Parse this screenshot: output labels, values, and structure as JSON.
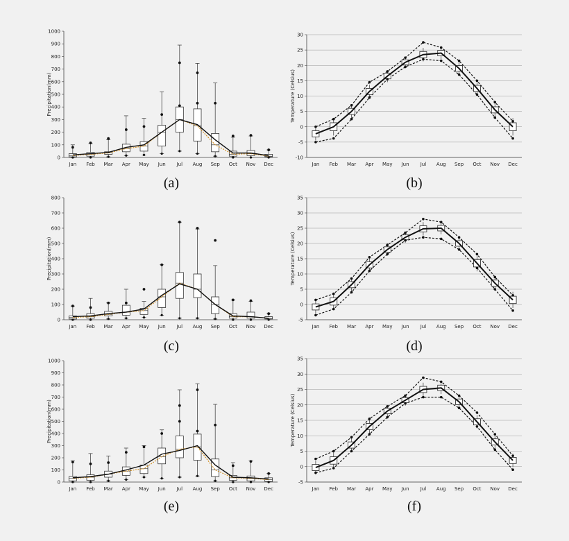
{
  "figure": {
    "background": "#f1f1f1",
    "median_line_color": "#d4932a"
  },
  "chart_data": [
    {
      "id": "a",
      "type": "box",
      "caption": "(a)",
      "ylabel": "Precipitation(mm)",
      "categories": [
        "Jan",
        "Feb",
        "Mar",
        "Apr",
        "May",
        "Jun",
        "Jul",
        "Aug",
        "Sep",
        "Oct",
        "Nov",
        "Dec"
      ],
      "ylim": [
        0,
        1000
      ],
      "yticks": [
        0,
        100,
        200,
        300,
        400,
        500,
        600,
        700,
        800,
        900,
        1000
      ],
      "boxes": [
        {
          "min": 0,
          "q1": 5,
          "median": 15,
          "q3": 30,
          "max": 100
        },
        {
          "min": 0,
          "q1": 10,
          "median": 25,
          "q3": 40,
          "max": 110
        },
        {
          "min": 5,
          "q1": 25,
          "median": 35,
          "q3": 45,
          "max": 140
        },
        {
          "min": 15,
          "q1": 45,
          "median": 70,
          "q3": 105,
          "max": 330
        },
        {
          "min": 20,
          "q1": 50,
          "median": 90,
          "q3": 125,
          "max": 310
        },
        {
          "min": 30,
          "q1": 90,
          "median": 200,
          "q3": 255,
          "max": 520
        },
        {
          "min": 50,
          "q1": 200,
          "median": 300,
          "q3": 400,
          "max": 890
        },
        {
          "min": 30,
          "q1": 130,
          "median": 250,
          "q3": 385,
          "max": 745
        },
        {
          "min": 10,
          "q1": 45,
          "median": 100,
          "q3": 190,
          "max": 590
        },
        {
          "min": 0,
          "q1": 10,
          "median": 25,
          "q3": 50,
          "max": 160
        },
        {
          "min": 0,
          "q1": 15,
          "median": 30,
          "q3": 55,
          "max": 170
        },
        {
          "min": 0,
          "q1": 5,
          "median": 10,
          "q3": 25,
          "max": 60
        }
      ],
      "mean": [
        20,
        30,
        40,
        80,
        100,
        200,
        300,
        260,
        140,
        35,
        35,
        15
      ],
      "points": [
        [
          0,
          80
        ],
        [
          1,
          115
        ],
        [
          2,
          150
        ],
        [
          3,
          220
        ],
        [
          4,
          245
        ],
        [
          5,
          340
        ],
        [
          6,
          750
        ],
        [
          6,
          410
        ],
        [
          7,
          670
        ],
        [
          7,
          430
        ],
        [
          8,
          430
        ],
        [
          9,
          170
        ],
        [
          10,
          175
        ],
        [
          11,
          60
        ]
      ]
    },
    {
      "id": "b",
      "type": "line",
      "caption": "(b)",
      "ylabel": "Temperature (Celsius)",
      "categories": [
        "Jan",
        "Feb",
        "Mar",
        "Apr",
        "May",
        "Jun",
        "Jul",
        "Aug",
        "Sep",
        "Oct",
        "Nov",
        "Dec"
      ],
      "ylim": [
        -10,
        30
      ],
      "yticks": [
        -10,
        -5,
        0,
        5,
        10,
        15,
        20,
        25,
        30
      ],
      "mean": [
        -2.3,
        0,
        5,
        11.5,
        16.5,
        21,
        23.5,
        24,
        19,
        12.5,
        5.5,
        0
      ],
      "upper": [
        0,
        2.5,
        7,
        14.5,
        18,
        22.5,
        27.5,
        25.8,
        21.5,
        15,
        8,
        1.8
      ],
      "lower": [
        -5,
        -3.8,
        2.5,
        9.5,
        15.5,
        19.5,
        22,
        21.5,
        17,
        10.5,
        3,
        -3.8
      ],
      "box_half": [
        1,
        1.3,
        1,
        1,
        0.9,
        0.8,
        1,
        0.9,
        0.9,
        1,
        1,
        1.3
      ]
    },
    {
      "id": "c",
      "type": "box",
      "caption": "(c)",
      "ylabel": "Precipitation(mm)",
      "categories": [
        "Jan",
        "Feb",
        "Mar",
        "Apr",
        "May",
        "Jun",
        "Jul",
        "Aug",
        "Sep",
        "Oct",
        "Nov",
        "Dec"
      ],
      "ylim": [
        0,
        800
      ],
      "yticks": [
        0,
        100,
        200,
        300,
        400,
        500,
        600,
        700,
        800
      ],
      "boxes": [
        {
          "min": 0,
          "q1": 5,
          "median": 15,
          "q3": 25,
          "max": 90
        },
        {
          "min": 0,
          "q1": 10,
          "median": 20,
          "q3": 40,
          "max": 140
        },
        {
          "min": 5,
          "q1": 25,
          "median": 35,
          "q3": 55,
          "max": 110
        },
        {
          "min": 10,
          "q1": 30,
          "median": 50,
          "q3": 95,
          "max": 200
        },
        {
          "min": 15,
          "q1": 35,
          "median": 60,
          "q3": 75,
          "max": 120
        },
        {
          "min": 30,
          "q1": 80,
          "median": 150,
          "q3": 200,
          "max": 360
        },
        {
          "min": 10,
          "q1": 140,
          "median": 240,
          "q3": 310,
          "max": 640
        },
        {
          "min": 10,
          "q1": 145,
          "median": 200,
          "q3": 300,
          "max": 595
        },
        {
          "min": 5,
          "q1": 40,
          "median": 100,
          "q3": 150,
          "max": 355
        },
        {
          "min": 0,
          "q1": 10,
          "median": 20,
          "q3": 40,
          "max": 130
        },
        {
          "min": 0,
          "q1": 10,
          "median": 20,
          "q3": 50,
          "max": 120
        },
        {
          "min": 0,
          "q1": 5,
          "median": 10,
          "q3": 20,
          "max": 40
        }
      ],
      "mean": [
        20,
        25,
        40,
        50,
        70,
        160,
        235,
        200,
        100,
        25,
        20,
        10
      ],
      "points": [
        [
          0,
          90
        ],
        [
          1,
          80
        ],
        [
          2,
          110
        ],
        [
          3,
          110
        ],
        [
          4,
          200
        ],
        [
          5,
          360
        ],
        [
          6,
          640
        ],
        [
          7,
          600
        ],
        [
          8,
          520
        ],
        [
          9,
          130
        ],
        [
          10,
          125
        ],
        [
          11,
          40
        ]
      ]
    },
    {
      "id": "d",
      "type": "line",
      "caption": "(d)",
      "ylabel": "Temperature (Celsius)",
      "categories": [
        "Jan",
        "Feb",
        "Mar",
        "Apr",
        "May",
        "Jun",
        "Jul",
        "Aug",
        "Sep",
        "Oct",
        "Nov",
        "Dec"
      ],
      "ylim": [
        -5,
        35
      ],
      "yticks": [
        -5,
        0,
        5,
        10,
        15,
        20,
        25,
        30,
        35
      ],
      "mean": [
        -0.8,
        1,
        6.5,
        13,
        18,
        22,
        24.8,
        25,
        20,
        13.5,
        7,
        1.5
      ],
      "upper": [
        1.5,
        3.5,
        8.5,
        15.5,
        19.5,
        23.5,
        28,
        27,
        22,
        16.5,
        9,
        3
      ],
      "lower": [
        -3.5,
        -1.5,
        4,
        11,
        16.5,
        21,
        22,
        21.5,
        18,
        12,
        5,
        -2
      ],
      "box_half": [
        1,
        1.2,
        1,
        1,
        0.9,
        0.8,
        1,
        0.9,
        0.9,
        1.2,
        1,
        1.2
      ]
    },
    {
      "id": "e",
      "type": "box",
      "caption": "(e)",
      "ylabel": "Precipitation(mm)",
      "categories": [
        "Jan",
        "Feb",
        "Mar",
        "Apr",
        "May",
        "Jun",
        "Jul",
        "Aug",
        "Sep",
        "Oct",
        "Nov",
        "Dec"
      ],
      "ylim": [
        0,
        1000
      ],
      "yticks": [
        0,
        100,
        200,
        300,
        400,
        500,
        600,
        700,
        800,
        900,
        1000
      ],
      "boxes": [
        {
          "min": 0,
          "q1": 10,
          "median": 30,
          "q3": 45,
          "max": 175
        },
        {
          "min": 0,
          "q1": 15,
          "median": 40,
          "q3": 60,
          "max": 235
        },
        {
          "min": 10,
          "q1": 40,
          "median": 65,
          "q3": 90,
          "max": 215
        },
        {
          "min": 20,
          "q1": 55,
          "median": 90,
          "q3": 125,
          "max": 280
        },
        {
          "min": 40,
          "q1": 70,
          "median": 110,
          "q3": 140,
          "max": 300
        },
        {
          "min": 30,
          "q1": 150,
          "median": 210,
          "q3": 280,
          "max": 430
        },
        {
          "min": 40,
          "q1": 200,
          "median": 270,
          "q3": 380,
          "max": 760
        },
        {
          "min": 50,
          "q1": 180,
          "median": 290,
          "q3": 395,
          "max": 810
        },
        {
          "min": 10,
          "q1": 45,
          "median": 100,
          "q3": 190,
          "max": 640
        },
        {
          "min": 0,
          "q1": 15,
          "median": 35,
          "q3": 55,
          "max": 160
        },
        {
          "min": 0,
          "q1": 10,
          "median": 30,
          "q3": 50,
          "max": 175
        },
        {
          "min": 0,
          "q1": 5,
          "median": 20,
          "q3": 35,
          "max": 70
        }
      ],
      "mean": [
        35,
        45,
        65,
        100,
        140,
        230,
        260,
        300,
        140,
        40,
        35,
        25
      ],
      "points": [
        [
          0,
          165
        ],
        [
          1,
          150
        ],
        [
          2,
          160
        ],
        [
          3,
          245
        ],
        [
          4,
          290
        ],
        [
          5,
          400
        ],
        [
          6,
          630
        ],
        [
          6,
          500
        ],
        [
          7,
          760
        ],
        [
          7,
          420
        ],
        [
          8,
          470
        ],
        [
          9,
          135
        ],
        [
          10,
          170
        ],
        [
          11,
          70
        ]
      ]
    },
    {
      "id": "f",
      "type": "line",
      "caption": "(f)",
      "ylabel": "Temperature (Celsius)",
      "categories": [
        "Jan",
        "Feb",
        "Mar",
        "Apr",
        "May",
        "Jun",
        "Jul",
        "Aug",
        "Sep",
        "Oct",
        "Nov",
        "Dec"
      ],
      "ylim": [
        -5,
        35
      ],
      "yticks": [
        -5,
        0,
        5,
        10,
        15,
        20,
        25,
        30,
        35
      ],
      "mean": [
        -0.3,
        2,
        7,
        13,
        18,
        21.5,
        25,
        25.5,
        21,
        14.5,
        8,
        2
      ],
      "upper": [
        2.5,
        5,
        9.5,
        15.5,
        19.5,
        23,
        28.8,
        27.5,
        23,
        17.5,
        10.5,
        3.5
      ],
      "lower": [
        -2,
        -0.5,
        5,
        10.5,
        16,
        20.5,
        22.5,
        22.5,
        19,
        13,
        5.5,
        -1
      ],
      "box_half": [
        1,
        1.2,
        1,
        1,
        0.9,
        0.8,
        1,
        0.9,
        0.9,
        1,
        1,
        1
      ]
    }
  ]
}
